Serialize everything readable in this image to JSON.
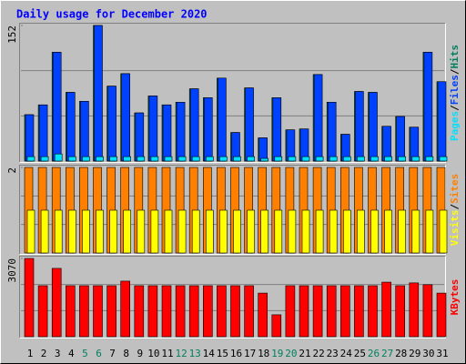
{
  "chart_data": {
    "type": "bar",
    "title": "Daily usage for December 2020",
    "categories": [
      "1",
      "2",
      "3",
      "4",
      "5",
      "6",
      "7",
      "8",
      "9",
      "10",
      "11",
      "12",
      "13",
      "14",
      "15",
      "16",
      "17",
      "18",
      "19",
      "20",
      "21",
      "22",
      "23",
      "24",
      "25",
      "26",
      "27",
      "28",
      "29",
      "30",
      "31"
    ],
    "category_colors": [
      "#000000",
      "#000000",
      "#000000",
      "#000000",
      "#00805c",
      "#00805c",
      "#000000",
      "#000000",
      "#000000",
      "#000000",
      "#000000",
      "#00805c",
      "#00805c",
      "#000000",
      "#000000",
      "#000000",
      "#000000",
      "#000000",
      "#00805c",
      "#00805c",
      "#000000",
      "#000000",
      "#000000",
      "#000000",
      "#000000",
      "#00805c",
      "#00805c",
      "#000000",
      "#000000",
      "#000000",
      "#000000"
    ],
    "legend_separator": "/",
    "grid_divisions": 3,
    "panels": [
      {
        "ylim": [
          0,
          152
        ],
        "yticks": [
          152
        ],
        "series": [
          {
            "name": "Hits",
            "color": "#00805c",
            "values": [
              52,
              63,
              122,
              77,
              67,
              152,
              84,
              98,
              54,
              73,
              63,
              66,
              81,
              71,
              93,
              32,
              82,
              26,
              71,
              35,
              36,
              97,
              66,
              30,
              78,
              77,
              39,
              50,
              38,
              122,
              89
            ]
          },
          {
            "name": "Files",
            "color": "#0040ff",
            "values": [
              52,
              63,
              122,
              77,
              67,
              152,
              84,
              98,
              54,
              73,
              63,
              66,
              81,
              71,
              93,
              32,
              82,
              26,
              71,
              35,
              36,
              97,
              66,
              30,
              78,
              77,
              39,
              50,
              38,
              122,
              89
            ]
          },
          {
            "name": "Pages",
            "color": "#00e0ff",
            "values": [
              5,
              5,
              8,
              5,
              5,
              5,
              5,
              5,
              5,
              5,
              5,
              5,
              5,
              5,
              5,
              5,
              5,
              3,
              5,
              5,
              5,
              5,
              5,
              5,
              5,
              5,
              5,
              5,
              5,
              5,
              5
            ]
          }
        ]
      },
      {
        "ylim": [
          0,
          2
        ],
        "yticks": [
          2
        ],
        "series": [
          {
            "name": "Sites",
            "color": "#ff8000",
            "values": [
              2,
              2,
              2,
              2,
              2,
              2,
              2,
              2,
              2,
              2,
              2,
              2,
              2,
              2,
              2,
              2,
              2,
              2,
              2,
              2,
              2,
              2,
              2,
              2,
              2,
              2,
              2,
              2,
              2,
              2,
              2
            ]
          },
          {
            "name": "Visits",
            "color": "#ffff00",
            "values": [
              1,
              1,
              1,
              1,
              1,
              1,
              1,
              1,
              1,
              1,
              1,
              1,
              1,
              1,
              1,
              1,
              1,
              1,
              1,
              1,
              1,
              1,
              1,
              1,
              1,
              1,
              1,
              1,
              1,
              1,
              1
            ]
          }
        ]
      },
      {
        "ylim": [
          0,
          3070
        ],
        "yticks": [
          3070
        ],
        "series": [
          {
            "name": "KBytes",
            "color": "#ff0000",
            "values": [
              3070,
              2000,
              2680,
              2000,
              2000,
              2000,
              2000,
              2180,
              2000,
              2000,
              2000,
              2000,
              2000,
              2000,
              2000,
              2000,
              2000,
              1710,
              860,
              2000,
              2000,
              2000,
              2000,
              2000,
              2000,
              2000,
              2140,
              2000,
              2110,
              2040,
              1710
            ]
          }
        ]
      }
    ]
  }
}
